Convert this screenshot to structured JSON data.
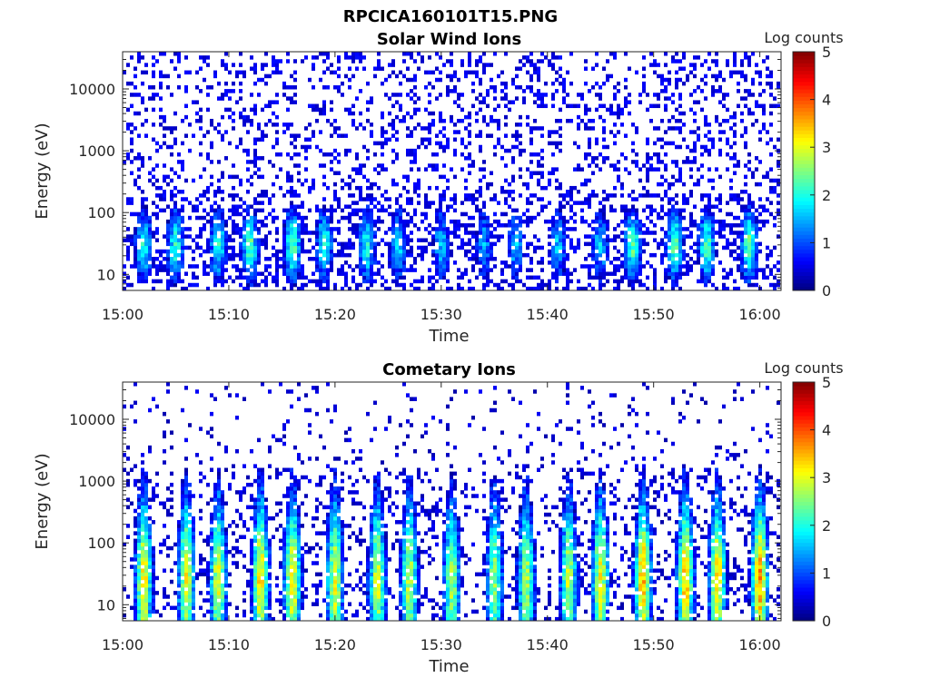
{
  "figure": {
    "file_title": "RPCICA160101T15.PNG"
  },
  "chart_data": [
    {
      "type": "heatmap",
      "title": "Solar Wind Ions",
      "xlabel": "Time",
      "ylabel": "Energy (eV)",
      "x_ticks": [
        "15:00",
        "15:10",
        "15:20",
        "15:30",
        "15:40",
        "15:50",
        "16:00"
      ],
      "x_range": [
        "15:00",
        "16:02"
      ],
      "y_scale": "log",
      "y_range": [
        5.5,
        40000
      ],
      "y_ticks": [
        10,
        100,
        1000,
        10000
      ],
      "y_tick_labels": [
        "10",
        "100",
        "1000",
        "10000"
      ],
      "colorbar": {
        "label": "Log counts",
        "range": [
          0,
          5
        ],
        "ticks": [
          "0",
          "1",
          "2",
          "3",
          "4",
          "5"
        ],
        "colormap": "jet"
      },
      "pulse_period_min": 3.7,
      "pulse_times": [
        "15:02",
        "15:05",
        "15:09",
        "15:12",
        "15:16",
        "15:19",
        "15:23",
        "15:26",
        "15:30",
        "15:34",
        "15:37",
        "15:41",
        "15:45",
        "15:48",
        "15:52",
        "15:55",
        "15:59"
      ],
      "pulse_peak_log_counts": [
        2.0,
        2.1,
        2.0,
        2.3,
        2.4,
        2.1,
        2.0,
        1.6,
        1.5,
        1.4,
        1.5,
        1.6,
        1.6,
        2.3,
        2.3,
        2.2,
        2.4
      ],
      "peak_energy_eV": 30,
      "background_log_counts": 0.3
    },
    {
      "type": "heatmap",
      "title": "Cometary Ions",
      "xlabel": "Time",
      "ylabel": "Energy (eV)",
      "x_ticks": [
        "15:00",
        "15:10",
        "15:20",
        "15:30",
        "15:40",
        "15:50",
        "16:00"
      ],
      "x_range": [
        "15:00",
        "16:02"
      ],
      "y_scale": "log",
      "y_range": [
        5.5,
        40000
      ],
      "y_ticks": [
        10,
        100,
        1000,
        10000
      ],
      "y_tick_labels": [
        "10",
        "100",
        "1000",
        "10000"
      ],
      "colorbar": {
        "label": "Log counts",
        "range": [
          0,
          5
        ],
        "ticks": [
          "0",
          "1",
          "2",
          "3",
          "4",
          "5"
        ],
        "colormap": "jet"
      },
      "pulse_period_min": 3.7,
      "pulse_times": [
        "15:02",
        "15:06",
        "15:09",
        "15:13",
        "15:16",
        "15:20",
        "15:24",
        "15:27",
        "15:31",
        "15:35",
        "15:38",
        "15:42",
        "15:45",
        "15:49",
        "15:53",
        "15:56",
        "16:00"
      ],
      "pulse_peak_log_counts": [
        3.2,
        3.1,
        3.0,
        3.3,
        3.2,
        3.0,
        2.9,
        2.8,
        2.7,
        2.6,
        2.7,
        2.8,
        3.1,
        3.5,
        3.4,
        3.3,
        3.6
      ],
      "peak_energy_eV": 25,
      "background_log_counts": 0.2
    }
  ]
}
